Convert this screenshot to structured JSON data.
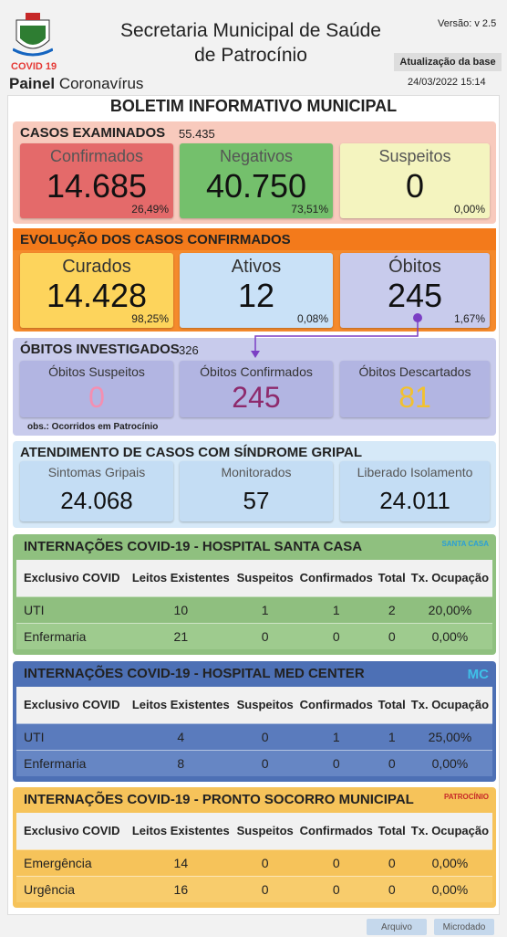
{
  "header": {
    "covid_tag": "COVID 19",
    "panel_bold": "Painel",
    "panel_rest": "Coronavírus",
    "title_line1": "Secretaria Municipal de Saúde",
    "title_line2": "de Patrocínio",
    "version": "Versão: v 2.5",
    "update_button": "Atualização da base",
    "datetime": "24/03/2022 15:14"
  },
  "bulletin_title": "BOLETIM INFORMATIVO MUNICIPAL",
  "examined": {
    "title": "CASOS EXAMINADOS",
    "total": "55.435",
    "cards": [
      {
        "label": "Confirmados",
        "value": "14.685",
        "pct": "26,49%"
      },
      {
        "label": "Negativos",
        "value": "40.750",
        "pct": "73,51%"
      },
      {
        "label": "Suspeitos",
        "value": "0",
        "pct": "0,00%"
      }
    ]
  },
  "evolution": {
    "title": "EVOLUÇÃO DOS CASOS CONFIRMADOS",
    "cards": [
      {
        "label": "Curados",
        "value": "14.428",
        "pct": "98,25%"
      },
      {
        "label": "Ativos",
        "value": "12",
        "pct": "0,08%"
      },
      {
        "label": "Óbitos",
        "value": "245",
        "pct": "1,67%"
      }
    ]
  },
  "deaths_investigated": {
    "title": "ÓBITOS INVESTIGADOS",
    "total": "326",
    "cards": [
      {
        "label": "Óbitos Suspeitos",
        "value": "0"
      },
      {
        "label": "Óbitos Confirmados",
        "value": "245"
      },
      {
        "label": "Óbitos Descartados",
        "value": "81"
      }
    ],
    "note": "obs.: Ocorridos em Patrocínio"
  },
  "flu": {
    "title": "ATENDIMENTO DE CASOS COM SÍNDROME GRIPAL",
    "cards": [
      {
        "label": "Sintomas Gripais",
        "value": "24.068"
      },
      {
        "label": "Monitorados",
        "value": "57"
      },
      {
        "label": "Liberado Isolamento",
        "value": "24.011"
      }
    ]
  },
  "hospitals": [
    {
      "title": "INTERNAÇÕES COVID-19 - HOSPITAL SANTA CASA",
      "logo": "SANTA CASA",
      "columns": [
        "Exclusivo COVID",
        "Leitos Existentes",
        "Suspeitos",
        "Confirmados",
        "Total",
        "Tx. Ocupação"
      ],
      "rows": [
        [
          "UTI",
          "10",
          "1",
          "1",
          "2",
          "20,00%"
        ],
        [
          "Enfermaria",
          "21",
          "0",
          "0",
          "0",
          "0,00%"
        ]
      ]
    },
    {
      "title": "INTERNAÇÕES COVID-19 - HOSPITAL MED CENTER",
      "logo": "MC",
      "columns": [
        "Exclusivo COVID",
        "Leitos Existentes",
        "Suspeitos",
        "Confirmados",
        "Total",
        "Tx. Ocupação"
      ],
      "rows": [
        [
          "UTI",
          "4",
          "0",
          "1",
          "1",
          "25,00%"
        ],
        [
          "Enfermaria",
          "8",
          "0",
          "0",
          "0",
          "0,00%"
        ]
      ]
    },
    {
      "title": "INTERNAÇÕES COVID-19 - PRONTO SOCORRO MUNICIPAL",
      "logo": "PATROCÍNIO",
      "columns": [
        "Exclusivo COVID",
        "Leitos Existentes",
        "Suspeitos",
        "Confirmados",
        "Total",
        "Tx. Ocupação"
      ],
      "rows": [
        [
          "Emergência",
          "14",
          "0",
          "0",
          "0",
          "0,00%"
        ],
        [
          "Urgência",
          "16",
          "0",
          "0",
          "0",
          "0,00%"
        ]
      ]
    }
  ],
  "footer": {
    "buttons": [
      "Arquivo",
      "Microdado"
    ]
  }
}
